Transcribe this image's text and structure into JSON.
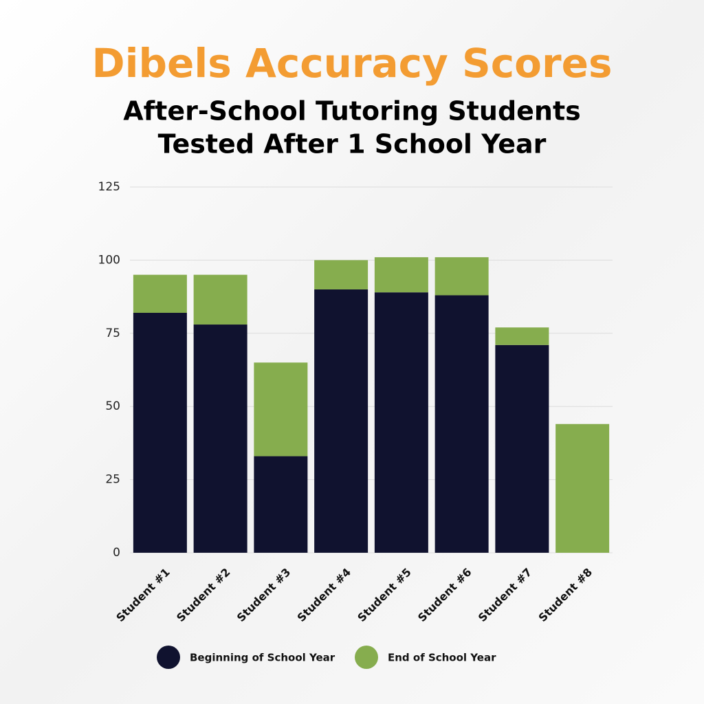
{
  "chart_data": {
    "type": "stacked_bar",
    "title": "Dibels Accuracy Scores",
    "subtitle": [
      "After-School Tutoring Students",
      "Tested After 1 School Year"
    ],
    "categories": [
      "Student #1",
      "Student #2",
      "Student #3",
      "Student #4",
      "Student #5",
      "Student #6",
      "Student #7",
      "Student #8"
    ],
    "series": [
      {
        "name": "Beginning of School Year",
        "color": "#10122f",
        "values": [
          82,
          78,
          33,
          90,
          89,
          88,
          71,
          0
        ]
      },
      {
        "name": "End of School Year",
        "color": "#86ad4e",
        "values": [
          13,
          17,
          32,
          10,
          12,
          13,
          6,
          44
        ]
      }
    ],
    "ylim": [
      0,
      125
    ],
    "yticks": [
      0,
      25,
      50,
      75,
      100,
      125
    ],
    "grid": true,
    "legend": "bottom"
  }
}
